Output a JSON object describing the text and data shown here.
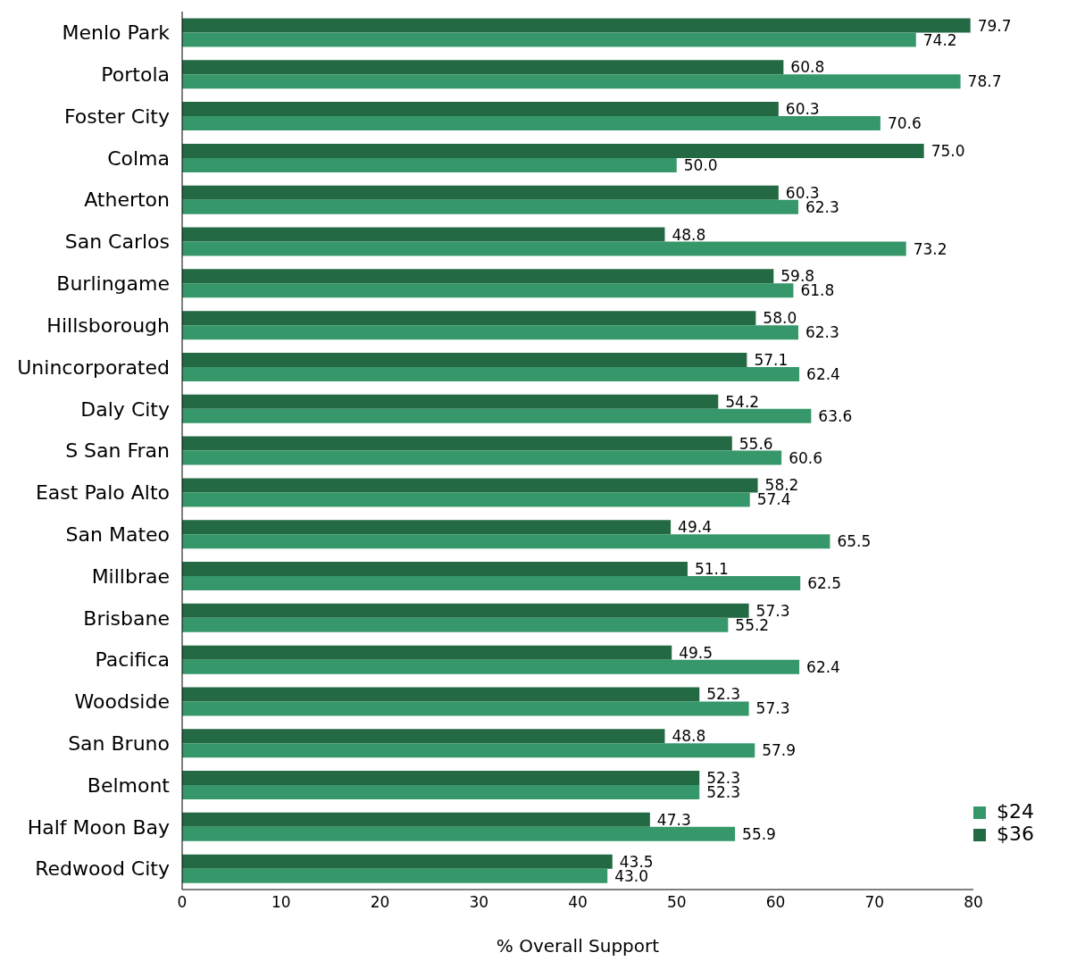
{
  "chart_data": {
    "type": "bar",
    "orientation": "horizontal",
    "xlabel": "% Overall Support",
    "categories": [
      "Menlo Park",
      "Portola",
      "Foster City",
      "Colma",
      "Atherton",
      "San Carlos",
      "Burlingame",
      "Hillsborough",
      "Unincorporated",
      "Daly City",
      "S San Fran",
      "East Palo Alto",
      "San Mateo",
      "Millbrae",
      "Brisbane",
      "Pacifica",
      "Woodside",
      "San Bruno",
      "Belmont",
      "Half Moon Bay",
      "Redwood City"
    ],
    "series": [
      {
        "name": "$36",
        "color": "#236943",
        "values": [
          79.7,
          60.8,
          60.3,
          75.0,
          60.3,
          48.8,
          59.8,
          58.0,
          57.1,
          54.2,
          55.6,
          58.2,
          49.4,
          51.1,
          57.3,
          49.5,
          52.3,
          48.8,
          52.3,
          47.3,
          43.5
        ],
        "value_labels": [
          "79.7",
          "60.8",
          "60.3",
          "75.0",
          "60.3",
          "48.8",
          "59.8",
          "58.0",
          "57.1",
          "54.2",
          "55.6",
          "58.2",
          "49.4",
          "51.1",
          "57.3",
          "49.5",
          "52.3",
          "48.8",
          "52.3",
          "47.3",
          "43.5"
        ]
      },
      {
        "name": "$24",
        "color": "#36976a",
        "values": [
          74.2,
          78.7,
          70.6,
          50.0,
          62.3,
          73.2,
          61.8,
          62.3,
          62.4,
          63.6,
          60.6,
          57.4,
          65.5,
          62.5,
          55.2,
          62.4,
          57.3,
          57.9,
          52.3,
          55.9,
          43.0
        ],
        "value_labels": [
          "74.2",
          "78.7",
          "70.6",
          "50.0",
          "62.3",
          "73.2",
          "61.8",
          "62.3",
          "62.4",
          "63.6",
          "60.6",
          "57.4",
          "65.5",
          "62.5",
          "55.2",
          "62.4",
          "57.3",
          "57.9",
          "52.3",
          "55.9",
          "43.0"
        ]
      }
    ],
    "xlim": [
      0,
      80
    ],
    "xticks": [
      0,
      10,
      20,
      30,
      40,
      50,
      60,
      70,
      80
    ],
    "legend": "bottom right",
    "grid": false
  }
}
